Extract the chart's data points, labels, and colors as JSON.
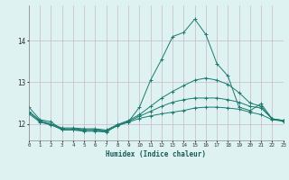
{
  "xlabel": "Humidex (Indice chaleur)",
  "x_values": [
    0,
    1,
    2,
    3,
    4,
    5,
    6,
    7,
    8,
    9,
    10,
    11,
    12,
    13,
    14,
    15,
    16,
    17,
    18,
    19,
    20,
    21,
    22,
    23
  ],
  "line1": [
    12.4,
    12.1,
    12.05,
    11.85,
    11.85,
    11.82,
    11.82,
    11.8,
    11.97,
    12.05,
    12.4,
    13.05,
    13.55,
    14.1,
    14.2,
    14.52,
    14.15,
    13.45,
    13.15,
    12.4,
    12.32,
    12.48,
    12.12,
    12.08
  ],
  "line2": [
    12.3,
    12.08,
    12.0,
    11.9,
    11.9,
    11.88,
    11.88,
    11.85,
    11.98,
    12.08,
    12.22,
    12.42,
    12.62,
    12.78,
    12.92,
    13.05,
    13.1,
    13.05,
    12.95,
    12.75,
    12.5,
    12.42,
    12.12,
    12.08
  ],
  "line3": [
    12.28,
    12.06,
    11.98,
    11.88,
    11.88,
    11.86,
    11.86,
    11.83,
    11.96,
    12.06,
    12.18,
    12.3,
    12.42,
    12.52,
    12.58,
    12.62,
    12.62,
    12.62,
    12.58,
    12.52,
    12.42,
    12.38,
    12.12,
    12.07
  ],
  "line4": [
    12.24,
    12.04,
    11.97,
    11.86,
    11.86,
    11.84,
    11.84,
    11.82,
    11.95,
    12.04,
    12.13,
    12.19,
    12.24,
    12.28,
    12.32,
    12.38,
    12.4,
    12.4,
    12.38,
    12.35,
    12.28,
    12.22,
    12.1,
    12.06
  ],
  "line_color": "#1a7a6e",
  "bg_color": "#dff2f2",
  "grid_color_x": "#c9b8c9",
  "grid_color_y": "#c9b8c9",
  "ylim": [
    11.6,
    14.85
  ],
  "yticks": [
    12,
    13,
    14
  ],
  "xlim": [
    0,
    23
  ]
}
